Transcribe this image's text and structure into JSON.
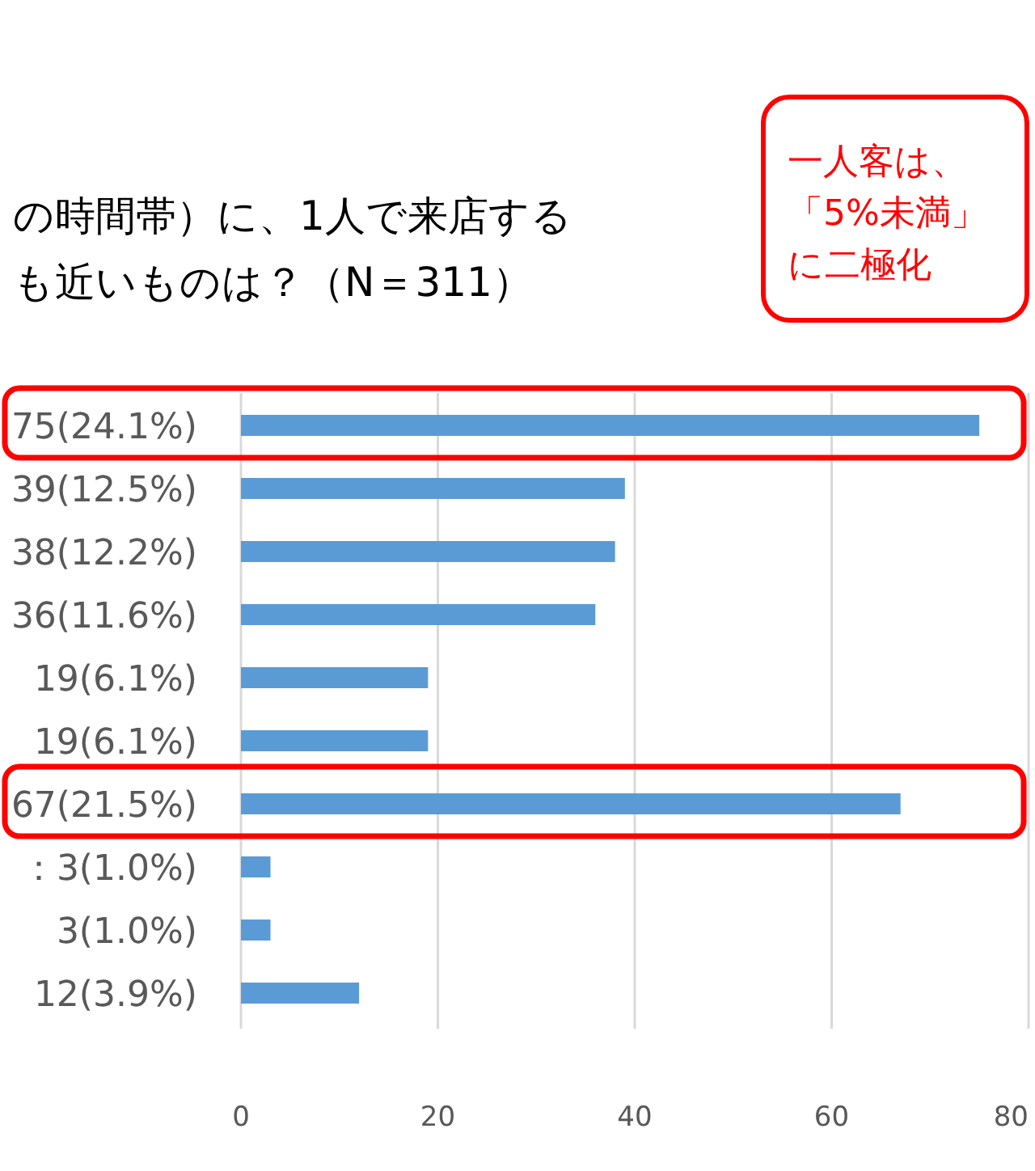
{
  "chart_data": {
    "type": "bar",
    "orientation": "horizontal",
    "title": "の時間帯）に、1人で来店する",
    "subtitle": "も近いものは？（N＝311）",
    "categories": [
      "75(24.1%)",
      "39(12.5%)",
      "38(12.2%)",
      "36(11.6%)",
      "19(6.1%)",
      "19(6.1%)",
      "67(21.5%)",
      "：3(1.0%)",
      "3(1.0%)",
      "12(3.9%)"
    ],
    "values": [
      75,
      39,
      38,
      36,
      19,
      19,
      67,
      3,
      3,
      12
    ],
    "color": "#5b9bd5",
    "xlim": [
      0,
      80
    ],
    "xticks": [
      0,
      20,
      40,
      60,
      80
    ],
    "grid": "x",
    "annotations": [
      "一人客は、",
      "「5%未満」",
      "に二極化"
    ]
  }
}
